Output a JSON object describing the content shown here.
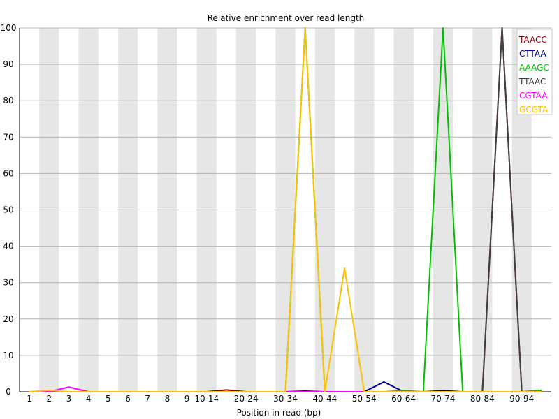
{
  "chart_data": {
    "type": "line",
    "title": "Relative enrichment over read length",
    "xlabel": "Position in read (bp)",
    "ylabel": "",
    "ylim": [
      0,
      100
    ],
    "yticks": [
      0,
      10,
      20,
      30,
      40,
      50,
      60,
      70,
      80,
      90,
      100
    ],
    "categories": [
      "1",
      "2",
      "3",
      "4",
      "5",
      "6",
      "7",
      "8",
      "9",
      "10-14",
      "15-19",
      "20-24",
      "25-29",
      "30-34",
      "35-39",
      "40-44",
      "45-49",
      "50-54",
      "55-59",
      "60-64",
      "65-69",
      "70-74",
      "75-79",
      "80-84",
      "85-89",
      "90-94",
      "95-98"
    ],
    "xtick_labels": [
      "1",
      "2",
      "3",
      "4",
      "5",
      "6",
      "7",
      "8",
      "9",
      "10-14",
      "",
      "20-24",
      "",
      "30-34",
      "",
      "40-44",
      "",
      "50-54",
      "",
      "60-64",
      "",
      "70-74",
      "",
      "80-84",
      "",
      "90-94",
      ""
    ],
    "grid": true,
    "legend_position": "top-right",
    "series": [
      {
        "name": "TAACC",
        "color": "#800000",
        "values": [
          0,
          0,
          0,
          0,
          0,
          0,
          0,
          0,
          0,
          0,
          0.5,
          0,
          0,
          0,
          0,
          0,
          0,
          0,
          0,
          0,
          0,
          0,
          0,
          0,
          100,
          0,
          0
        ]
      },
      {
        "name": "CTTAA",
        "color": "#00008b",
        "values": [
          0,
          0,
          0,
          0,
          0,
          0,
          0,
          0,
          0,
          0,
          0,
          0,
          0,
          0,
          0.2,
          0,
          0,
          0,
          2.7,
          0,
          0,
          0.3,
          0,
          0,
          0,
          0,
          0
        ]
      },
      {
        "name": "AAAGC",
        "color": "#00c000",
        "values": [
          0,
          0.2,
          0,
          0,
          0,
          0,
          0,
          0,
          0,
          0,
          0,
          0,
          0,
          0,
          100,
          0,
          0,
          0,
          0,
          0.3,
          0,
          100,
          0,
          0,
          0,
          0,
          0.4
        ]
      },
      {
        "name": "TTAAC",
        "color": "#404040",
        "values": [
          0,
          0,
          0,
          0,
          0,
          0,
          0,
          0,
          0,
          0,
          0,
          0,
          0,
          0,
          0,
          0,
          0,
          0,
          0,
          0,
          0,
          0,
          0,
          0,
          100,
          0,
          0
        ]
      },
      {
        "name": "CGTAA",
        "color": "#ff00ff",
        "values": [
          0,
          0,
          1.3,
          0,
          0,
          0,
          0,
          0,
          0,
          0,
          0,
          0,
          0,
          0,
          0,
          0,
          0,
          0,
          0,
          0,
          0,
          0,
          0,
          0,
          0,
          0,
          0
        ]
      },
      {
        "name": "GCGTA",
        "color": "#ffc000",
        "values": [
          0,
          0.4,
          0,
          0,
          0,
          0,
          0,
          0,
          0,
          0,
          0,
          0,
          0,
          0,
          100,
          0,
          34,
          0,
          0,
          0,
          0,
          0,
          0,
          0,
          0,
          0,
          0
        ]
      }
    ]
  }
}
